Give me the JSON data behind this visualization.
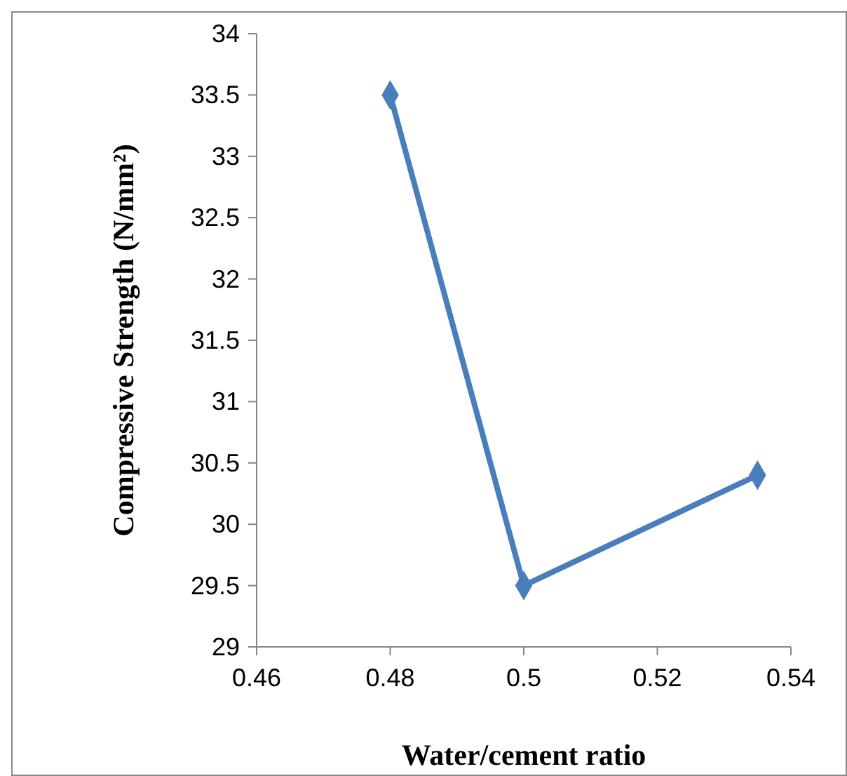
{
  "chart_data": {
    "type": "line",
    "xlabel": "Water/cement ratio",
    "ylabel": "Compressive Strength (N/mm²)",
    "x": [
      0.48,
      0.5,
      0.535
    ],
    "series": [
      {
        "color": "#4a7ebb",
        "values": [
          33.5,
          29.5,
          30.4
        ]
      }
    ],
    "xlim": [
      0.46,
      0.54
    ],
    "xticks": [
      0.46,
      0.48,
      0.5,
      0.52,
      0.54
    ],
    "ylim": [
      29,
      34
    ],
    "yticks": [
      29,
      29.5,
      30,
      30.5,
      31,
      31.5,
      32,
      32.5,
      33,
      33.5,
      34
    ],
    "grid": false,
    "marker": "diamond",
    "line_style": "solid"
  }
}
